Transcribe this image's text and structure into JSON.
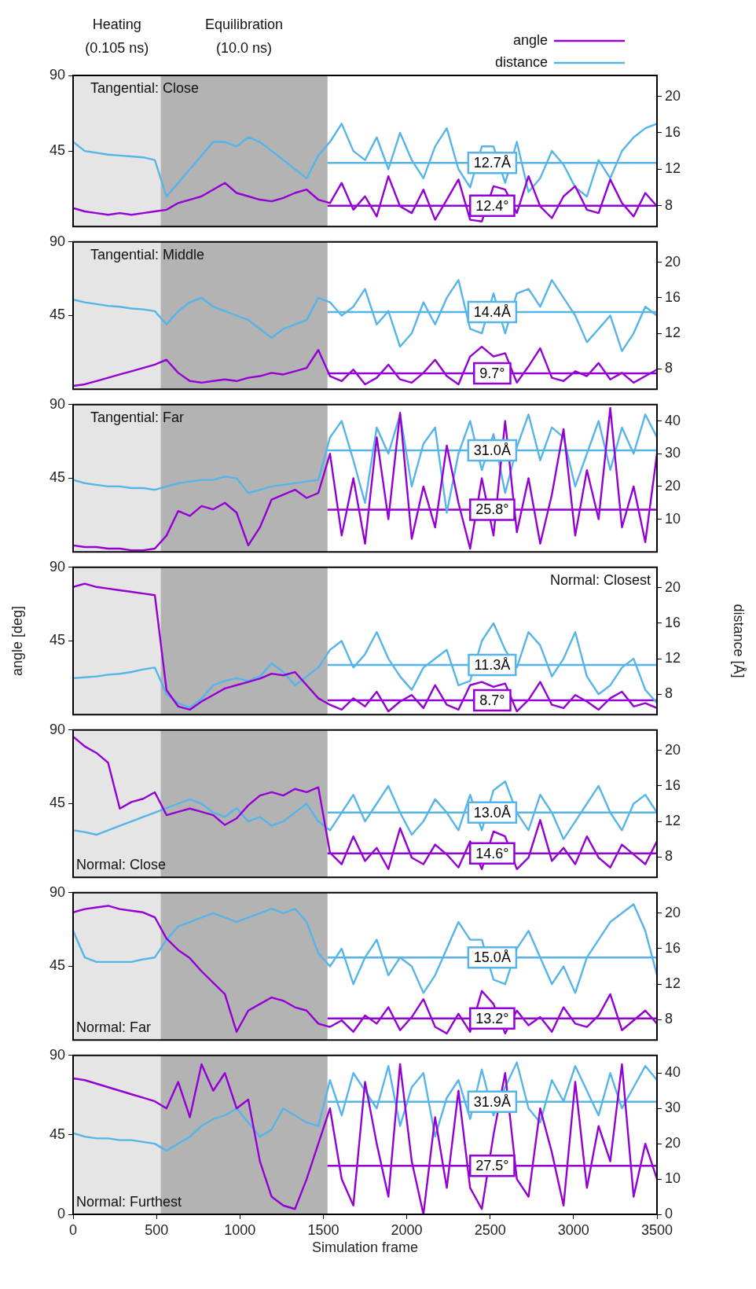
{
  "chart_data": [
    {
      "type": "line",
      "title": "Tangential: Close",
      "legend": "top right",
      "tick_labels": [
        "y",
        "y2"
      ],
      "x": [
        0,
        70,
        140,
        210,
        280,
        350,
        420,
        490,
        560,
        630,
        700,
        770,
        840,
        910,
        980,
        1050,
        1120,
        1190,
        1260,
        1330,
        1400,
        1470,
        1540,
        1610,
        1680,
        1750,
        1820,
        1890,
        1960,
        2030,
        2100,
        2170,
        2240,
        2310,
        2380,
        2450,
        2520,
        2590,
        2660,
        2730,
        2800,
        2870,
        2940,
        3010,
        3080,
        3150,
        3220,
        3290,
        3360,
        3430,
        3500
      ],
      "xlim": [
        0,
        3500
      ],
      "ylim": [
        0,
        90
      ],
      "yticks": [
        45,
        90
      ],
      "y2lim": [
        5.7,
        22.3
      ],
      "y2ticks": [
        8,
        12,
        16,
        20
      ],
      "series": [
        {
          "name": "angle",
          "color": "#9400d3",
          "values": [
            11,
            9,
            8,
            7,
            8,
            7,
            8,
            9,
            10,
            14,
            16,
            18,
            22,
            26,
            20,
            18,
            16,
            15,
            17,
            20,
            22,
            16,
            14,
            26,
            10,
            18,
            6,
            30,
            12,
            8,
            22,
            4,
            16,
            28,
            4,
            3,
            24,
            22,
            8,
            30,
            12,
            5,
            18,
            24,
            10,
            8,
            28,
            14,
            6,
            20,
            12
          ]
        },
        {
          "name": "distance",
          "color": "#56b4e9",
          "axis": "y2",
          "values": [
            15,
            14,
            13.8,
            13.6,
            13.5,
            13.4,
            13.3,
            13,
            9,
            10.5,
            12,
            13.5,
            15,
            15,
            14.5,
            15.5,
            15,
            14,
            13,
            12,
            11,
            13.5,
            15,
            17,
            14,
            13,
            15.5,
            12,
            16,
            13,
            11,
            14.5,
            16.5,
            12,
            10,
            14.5,
            14.5,
            10.5,
            15,
            9.5,
            11,
            14,
            12.5,
            10,
            9,
            13,
            11,
            14,
            15.5,
            16.5,
            17
          ]
        }
      ],
      "bands": [
        {
          "axis": "x",
          "from": 0,
          "to": 525,
          "color": "#e5e5e5",
          "label": "Heating\n(0.105 ns)"
        },
        {
          "axis": "x",
          "from": 525,
          "to": 1525,
          "color": "#b3b3b3",
          "label": "Equilibration\n(10.0 ns)"
        }
      ],
      "ref_lines": [
        {
          "axis": "y2",
          "value": 12.7,
          "label": "12.7Å",
          "color": "#56b4e9"
        },
        {
          "axis": "y",
          "value": 12.4,
          "label": "12.4°",
          "color": "#9400d3"
        }
      ]
    },
    {
      "type": "line",
      "title": "Tangential: Middle",
      "tick_labels": [
        "y",
        "y2"
      ],
      "x": [
        0,
        70,
        140,
        210,
        280,
        350,
        420,
        490,
        560,
        630,
        700,
        770,
        840,
        910,
        980,
        1050,
        1120,
        1190,
        1260,
        1330,
        1400,
        1470,
        1540,
        1610,
        1680,
        1750,
        1820,
        1890,
        1960,
        2030,
        2100,
        2170,
        2240,
        2310,
        2380,
        2450,
        2520,
        2590,
        2660,
        2730,
        2800,
        2870,
        2940,
        3010,
        3080,
        3150,
        3220,
        3290,
        3360,
        3430,
        3500
      ],
      "xlim": [
        0,
        3500
      ],
      "ylim": [
        0,
        90
      ],
      "yticks": [
        45,
        90
      ],
      "y2lim": [
        5.7,
        22.3
      ],
      "y2ticks": [
        8,
        12,
        16,
        20
      ],
      "series": [
        {
          "color": "#9400d3",
          "values": [
            2,
            3,
            5,
            7,
            9,
            11,
            13,
            15,
            18,
            10,
            5,
            4,
            5,
            6,
            5,
            7,
            8,
            10,
            9,
            11,
            13,
            24,
            8,
            5,
            12,
            3,
            7,
            15,
            6,
            4,
            10,
            18,
            8,
            3,
            20,
            26,
            20,
            22,
            4,
            14,
            25,
            7,
            5,
            11,
            8,
            16,
            6,
            10,
            4,
            8,
            12
          ]
        },
        {
          "color": "#56b4e9",
          "axis": "y2",
          "values": [
            15.8,
            15.5,
            15.3,
            15.1,
            15,
            14.8,
            14.7,
            14.5,
            13,
            14.5,
            15.5,
            16,
            15,
            14.5,
            14,
            13.5,
            12.5,
            11.5,
            12.5,
            13,
            13.5,
            16,
            15.5,
            14,
            15,
            17,
            13,
            14.5,
            10.5,
            12,
            15.5,
            13,
            16,
            18,
            12.5,
            12,
            16.5,
            12,
            16.5,
            17,
            15,
            18,
            16,
            14,
            11,
            12.5,
            14,
            10,
            12,
            15,
            14
          ]
        }
      ],
      "bands": [
        {
          "axis": "x",
          "from": 0,
          "to": 525,
          "color": "#e5e5e5"
        },
        {
          "axis": "x",
          "from": 525,
          "to": 1525,
          "color": "#b3b3b3"
        }
      ],
      "ref_lines": [
        {
          "axis": "y2",
          "value": 14.4,
          "label": "14.4Å",
          "color": "#56b4e9"
        },
        {
          "axis": "y",
          "value": 9.7,
          "label": "9.7°",
          "color": "#9400d3"
        }
      ]
    },
    {
      "type": "line",
      "title": "Tangential: Far",
      "tick_labels": [
        "y",
        "y2"
      ],
      "x": [
        0,
        70,
        140,
        210,
        280,
        350,
        420,
        490,
        560,
        630,
        700,
        770,
        840,
        910,
        980,
        1050,
        1120,
        1190,
        1260,
        1330,
        1400,
        1470,
        1540,
        1610,
        1680,
        1750,
        1820,
        1890,
        1960,
        2030,
        2100,
        2170,
        2240,
        2310,
        2380,
        2450,
        2520,
        2590,
        2660,
        2730,
        2800,
        2870,
        2940,
        3010,
        3080,
        3150,
        3220,
        3290,
        3360,
        3430,
        3500
      ],
      "xlim": [
        0,
        3500
      ],
      "ylim": [
        0,
        90
      ],
      "yticks": [
        45,
        90
      ],
      "y2lim": [
        0,
        45
      ],
      "y2ticks": [
        10,
        20,
        30,
        40
      ],
      "series": [
        {
          "color": "#9400d3",
          "values": [
            4,
            3,
            3,
            2,
            2,
            1,
            1,
            2,
            10,
            25,
            22,
            28,
            26,
            30,
            24,
            4,
            15,
            32,
            35,
            38,
            33,
            36,
            60,
            10,
            45,
            5,
            70,
            20,
            85,
            8,
            40,
            15,
            65,
            30,
            2,
            45,
            10,
            80,
            12,
            45,
            5,
            35,
            75,
            10,
            50,
            20,
            88,
            15,
            40,
            6,
            60
          ]
        },
        {
          "color": "#56b4e9",
          "axis": "y2",
          "values": [
            22,
            21,
            20.5,
            20,
            20,
            19.5,
            19.5,
            19,
            20,
            21,
            21.5,
            22,
            22,
            23,
            22.5,
            18,
            19,
            20,
            20.5,
            21,
            21.5,
            22,
            35,
            40,
            28,
            15,
            38,
            30,
            42,
            20,
            33,
            38,
            12,
            30,
            40,
            25,
            36,
            18,
            32,
            42,
            28,
            38,
            35,
            20,
            30,
            40,
            25,
            38,
            30,
            42,
            35
          ]
        }
      ],
      "bands": [
        {
          "axis": "x",
          "from": 0,
          "to": 525,
          "color": "#e5e5e5"
        },
        {
          "axis": "x",
          "from": 525,
          "to": 1525,
          "color": "#b3b3b3"
        }
      ],
      "ref_lines": [
        {
          "axis": "y2",
          "value": 31,
          "label": "31.0Å",
          "color": "#56b4e9"
        },
        {
          "axis": "y",
          "value": 25.8,
          "label": "25.8°",
          "color": "#9400d3"
        }
      ]
    },
    {
      "type": "line",
      "title": "Normal: Closest",
      "ylabel": "angle [deg]",
      "y2label": "distance [Å]",
      "tick_labels": [
        "y",
        "y2"
      ],
      "x": [
        0,
        70,
        140,
        210,
        280,
        350,
        420,
        490,
        560,
        630,
        700,
        770,
        840,
        910,
        980,
        1050,
        1120,
        1190,
        1260,
        1330,
        1400,
        1470,
        1540,
        1610,
        1680,
        1750,
        1820,
        1890,
        1960,
        2030,
        2100,
        2170,
        2240,
        2310,
        2380,
        2450,
        2520,
        2590,
        2660,
        2730,
        2800,
        2870,
        2940,
        3010,
        3080,
        3150,
        3220,
        3290,
        3360,
        3430,
        3500
      ],
      "xlim": [
        0,
        3500
      ],
      "ylim": [
        0,
        90
      ],
      "yticks": [
        45,
        90
      ],
      "y2lim": [
        5.7,
        22.3
      ],
      "y2ticks": [
        8,
        12,
        16,
        20
      ],
      "series": [
        {
          "color": "#9400d3",
          "values": [
            78,
            80,
            78,
            77,
            76,
            75,
            74,
            73,
            15,
            5,
            3,
            8,
            12,
            16,
            18,
            20,
            22,
            25,
            24,
            26,
            18,
            10,
            6,
            3,
            10,
            5,
            14,
            2,
            8,
            12,
            4,
            18,
            6,
            3,
            18,
            20,
            17,
            19,
            2,
            9,
            20,
            6,
            4,
            12,
            8,
            3,
            10,
            14,
            5,
            7,
            4
          ]
        },
        {
          "color": "#56b4e9",
          "axis": "y2",
          "values": [
            9.8,
            9.9,
            10,
            10.2,
            10.3,
            10.5,
            10.8,
            11,
            8,
            7,
            6.5,
            7.5,
            9,
            9.5,
            9.8,
            9.5,
            10,
            11.5,
            10.5,
            9,
            10,
            11,
            13,
            14,
            11,
            12.5,
            15,
            12,
            10,
            8.5,
            11,
            12,
            13,
            9,
            9.5,
            14,
            16,
            13,
            11,
            15,
            13.5,
            10,
            12,
            15,
            10,
            8,
            9,
            11,
            12,
            8.5,
            7
          ]
        }
      ],
      "bands": [
        {
          "axis": "x",
          "from": 0,
          "to": 525,
          "color": "#e5e5e5"
        },
        {
          "axis": "x",
          "from": 525,
          "to": 1525,
          "color": "#b3b3b3"
        }
      ],
      "ref_lines": [
        {
          "axis": "y2",
          "value": 11.3,
          "label": "11.3Å",
          "color": "#56b4e9"
        },
        {
          "axis": "y",
          "value": 8.7,
          "label": "8.7°",
          "color": "#9400d3"
        }
      ]
    },
    {
      "type": "line",
      "title": "Normal: Close",
      "tick_labels": [
        "y",
        "y2"
      ],
      "x": [
        0,
        70,
        140,
        210,
        280,
        350,
        420,
        490,
        560,
        630,
        700,
        770,
        840,
        910,
        980,
        1050,
        1120,
        1190,
        1260,
        1330,
        1400,
        1470,
        1540,
        1610,
        1680,
        1750,
        1820,
        1890,
        1960,
        2030,
        2100,
        2170,
        2240,
        2310,
        2380,
        2450,
        2520,
        2590,
        2660,
        2730,
        2800,
        2870,
        2940,
        3010,
        3080,
        3150,
        3220,
        3290,
        3360,
        3430,
        3500
      ],
      "xlim": [
        0,
        3500
      ],
      "ylim": [
        0,
        90
      ],
      "yticks": [
        45,
        90
      ],
      "y2lim": [
        5.7,
        22.3
      ],
      "y2ticks": [
        8,
        12,
        16,
        20
      ],
      "series": [
        {
          "color": "#9400d3",
          "values": [
            86,
            80,
            76,
            70,
            42,
            46,
            48,
            52,
            38,
            40,
            42,
            40,
            38,
            32,
            36,
            44,
            50,
            52,
            50,
            54,
            52,
            55,
            15,
            8,
            25,
            10,
            18,
            5,
            30,
            12,
            8,
            20,
            14,
            6,
            22,
            5,
            28,
            25,
            5,
            12,
            35,
            10,
            18,
            8,
            25,
            12,
            6,
            20,
            14,
            8,
            22
          ]
        },
        {
          "color": "#56b4e9",
          "axis": "y2",
          "values": [
            11,
            10.8,
            10.5,
            11,
            11.5,
            12,
            12.5,
            13,
            13.5,
            14,
            14.5,
            14,
            13,
            12.5,
            13.5,
            12,
            12.5,
            11.5,
            12,
            13,
            14,
            12,
            11,
            13,
            15,
            12,
            14,
            16,
            13,
            10.5,
            12,
            14.5,
            13,
            11,
            15,
            11,
            15.5,
            16.5,
            13,
            11,
            15,
            13,
            10,
            12,
            14,
            16,
            13,
            11,
            14,
            15,
            13
          ]
        }
      ],
      "bands": [
        {
          "axis": "x",
          "from": 0,
          "to": 525,
          "color": "#e5e5e5"
        },
        {
          "axis": "x",
          "from": 525,
          "to": 1525,
          "color": "#b3b3b3"
        }
      ],
      "ref_lines": [
        {
          "axis": "y2",
          "value": 13,
          "label": "13.0Å",
          "color": "#56b4e9"
        },
        {
          "axis": "y",
          "value": 14.6,
          "label": "14.6°",
          "color": "#9400d3"
        }
      ]
    },
    {
      "type": "line",
      "title": "Normal: Far",
      "tick_labels": [
        "y",
        "y2"
      ],
      "x": [
        0,
        70,
        140,
        210,
        280,
        350,
        420,
        490,
        560,
        630,
        700,
        770,
        840,
        910,
        980,
        1050,
        1120,
        1190,
        1260,
        1330,
        1400,
        1470,
        1540,
        1610,
        1680,
        1750,
        1820,
        1890,
        1960,
        2030,
        2100,
        2170,
        2240,
        2310,
        2380,
        2450,
        2520,
        2590,
        2660,
        2730,
        2800,
        2870,
        2940,
        3010,
        3080,
        3150,
        3220,
        3290,
        3360,
        3430,
        3500
      ],
      "xlim": [
        0,
        3500
      ],
      "ylim": [
        0,
        90
      ],
      "yticks": [
        45,
        90
      ],
      "y2lim": [
        5.7,
        22.3
      ],
      "y2ticks": [
        8,
        12,
        16,
        20
      ],
      "series": [
        {
          "color": "#9400d3",
          "values": [
            78,
            80,
            81,
            82,
            80,
            79,
            78,
            75,
            62,
            55,
            50,
            42,
            35,
            28,
            5,
            18,
            22,
            26,
            24,
            20,
            18,
            10,
            8,
            12,
            5,
            15,
            10,
            20,
            6,
            14,
            25,
            8,
            4,
            16,
            5,
            30,
            22,
            4,
            18,
            9,
            14,
            5,
            20,
            10,
            8,
            15,
            28,
            6,
            12,
            18,
            10
          ]
        },
        {
          "color": "#56b4e9",
          "axis": "y2",
          "values": [
            18,
            15,
            14.5,
            14.5,
            14.5,
            14.5,
            14.8,
            15,
            17,
            18.5,
            19,
            19.5,
            20,
            19.5,
            19,
            19.5,
            20,
            20.5,
            20,
            20.5,
            19,
            15.5,
            14,
            16,
            12,
            15,
            17,
            13,
            15,
            14,
            11,
            13,
            16,
            19,
            17,
            17,
            12.5,
            12,
            16,
            18,
            15,
            12,
            14,
            11,
            15,
            17,
            19,
            20,
            21,
            18,
            13
          ]
        }
      ],
      "bands": [
        {
          "axis": "x",
          "from": 0,
          "to": 525,
          "color": "#e5e5e5"
        },
        {
          "axis": "x",
          "from": 525,
          "to": 1525,
          "color": "#b3b3b3"
        }
      ],
      "ref_lines": [
        {
          "axis": "y2",
          "value": 15,
          "label": "15.0Å",
          "color": "#56b4e9"
        },
        {
          "axis": "y",
          "value": 13.2,
          "label": "13.2°",
          "color": "#9400d3"
        }
      ]
    },
    {
      "type": "line",
      "title": "Normal: Furthest",
      "xlabel": "Simulation frame",
      "x": [
        0,
        70,
        140,
        210,
        280,
        350,
        420,
        490,
        560,
        630,
        700,
        770,
        840,
        910,
        980,
        1050,
        1120,
        1190,
        1260,
        1330,
        1400,
        1470,
        1540,
        1610,
        1680,
        1750,
        1820,
        1890,
        1960,
        2030,
        2100,
        2170,
        2240,
        2310,
        2380,
        2450,
        2520,
        2590,
        2660,
        2730,
        2800,
        2870,
        2940,
        3010,
        3080,
        3150,
        3220,
        3290,
        3360,
        3430,
        3500
      ],
      "xlim": [
        0,
        3500
      ],
      "xticks": [
        0,
        500,
        1000,
        1500,
        2000,
        2500,
        3000,
        3500
      ],
      "ylim": [
        0,
        90
      ],
      "yticks": [
        0,
        45,
        90
      ],
      "y2lim": [
        0,
        45
      ],
      "y2ticks": [
        0,
        10,
        20,
        30,
        40
      ],
      "series": [
        {
          "color": "#9400d3",
          "values": [
            77,
            76,
            74,
            72,
            70,
            68,
            66,
            64,
            60,
            75,
            55,
            85,
            70,
            80,
            60,
            65,
            30,
            10,
            5,
            3,
            20,
            40,
            60,
            20,
            5,
            75,
            40,
            10,
            85,
            30,
            0,
            55,
            15,
            70,
            15,
            3,
            45,
            80,
            20,
            10,
            60,
            35,
            5,
            75,
            15,
            50,
            30,
            85,
            10,
            40,
            20
          ]
        },
        {
          "color": "#56b4e9",
          "axis": "y2",
          "values": [
            23,
            22,
            21.5,
            21.5,
            21,
            21,
            20.5,
            20,
            18,
            20,
            22,
            25,
            27,
            28,
            30,
            26,
            22,
            24,
            30,
            28,
            26,
            25,
            38,
            28,
            40,
            35,
            30,
            42,
            25,
            36,
            40,
            22,
            33,
            38,
            27,
            41,
            28,
            36,
            43,
            30,
            26,
            38,
            32,
            42,
            35,
            28,
            40,
            30,
            36,
            42,
            38
          ]
        }
      ],
      "bands": [
        {
          "axis": "x",
          "from": 0,
          "to": 525,
          "color": "#e5e5e5"
        },
        {
          "axis": "x",
          "from": 525,
          "to": 1525,
          "color": "#b3b3b3"
        }
      ],
      "ref_lines": [
        {
          "axis": "y2",
          "value": 31.9,
          "label": "31.9Å",
          "color": "#56b4e9"
        },
        {
          "axis": "y",
          "value": 27.5,
          "label": "27.5°",
          "color": "#9400d3"
        }
      ]
    }
  ]
}
